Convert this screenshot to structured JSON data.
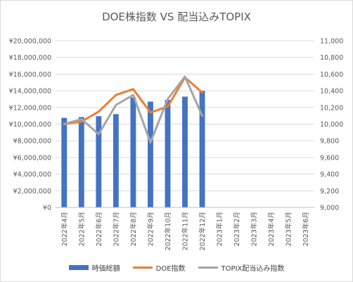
{
  "chart_data": {
    "type": "bar+line",
    "title": "DOE株指数 VS 配当込みTOPIX",
    "categories": [
      "2022年4月",
      "2022年5月",
      "2022年6月",
      "2022年7月",
      "2022年8月",
      "2022年9月",
      "2022年10月",
      "2022年11月",
      "2022年12月",
      "2023年1月",
      "2023年2月",
      "2023年3月",
      "2023年4月",
      "2023年5月",
      "2023年6月"
    ],
    "left_axis": {
      "min": 0,
      "max": 20000000,
      "step": 2000000,
      "tick_labels": [
        "¥0",
        "¥2,000,000",
        "¥4,000,000",
        "¥6,000,000",
        "¥8,000,000",
        "¥10,000,000",
        "¥12,000,000",
        "¥14,000,000",
        "¥16,000,000",
        "¥18,000,000",
        "¥20,000,000"
      ]
    },
    "right_axis": {
      "min": 9000,
      "max": 11000,
      "step": 200,
      "tick_labels": [
        "9,000",
        "9,200",
        "9,400",
        "9,600",
        "9,800",
        "10,000",
        "10,200",
        "10,400",
        "10,600",
        "10,800",
        "11,000"
      ]
    },
    "grid": true,
    "legend_position": "bottom",
    "series": [
      {
        "name": "時価総額",
        "type": "bar",
        "axis": "left",
        "color": "#4472c4",
        "values": [
          10750000,
          10850000,
          10950000,
          11200000,
          13200000,
          12700000,
          12900000,
          13300000,
          14000000,
          null,
          null,
          null,
          null,
          null,
          null
        ]
      },
      {
        "name": "DOE指数",
        "type": "line",
        "axis": "right",
        "color": "#ed7d31",
        "values": [
          10000,
          10030,
          10150,
          10350,
          10420,
          10140,
          10210,
          10560,
          10380,
          null,
          null,
          null,
          null,
          null,
          null
        ]
      },
      {
        "name": "TOPIX配当込み指数",
        "type": "line",
        "axis": "right",
        "color": "#a5a5a5",
        "values": [
          10000,
          10060,
          9880,
          10230,
          10350,
          9780,
          10300,
          10570,
          10100,
          null,
          null,
          null,
          null,
          null,
          null
        ]
      }
    ]
  }
}
